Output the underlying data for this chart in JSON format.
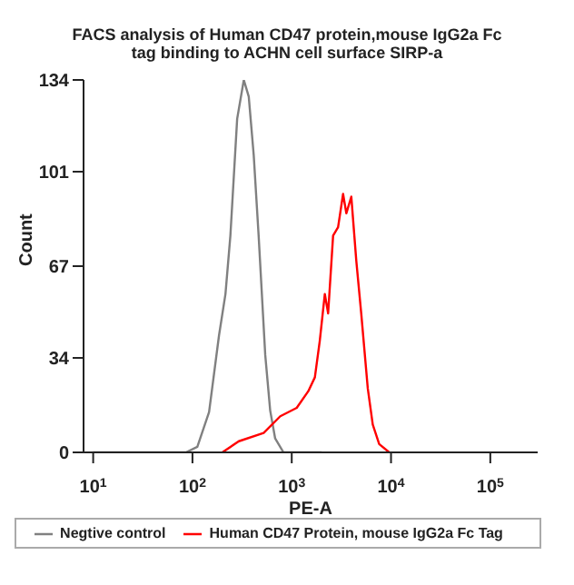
{
  "chart_data": {
    "type": "line",
    "title": "FACS analysis of Human CD47 protein,mouse IgG2a Fc tag binding to ACHN cell surface SIRP-a",
    "xlabel": "PE-A",
    "ylabel": "Count",
    "log": "x",
    "xlim": [
      8,
      300000
    ],
    "xticks": [
      {
        "value": 10,
        "label": "10$^{1}$"
      },
      {
        "value": 100,
        "label": "10$^{2}$"
      },
      {
        "value": 1000,
        "label": "10$^{3}$"
      },
      {
        "value": 10000,
        "label": "10$^{4}$"
      },
      {
        "value": 100000,
        "label": "10$^{5}$"
      }
    ],
    "ylim": [
      0,
      134
    ],
    "yticks": [
      0,
      34,
      67,
      101,
      134
    ],
    "grid": false,
    "legend": "bottom",
    "marker": "none",
    "line_style": "solid",
    "series": [
      {
        "name": "Negtive control",
        "color": "#808080",
        "x": [
          10,
          86,
          112,
          147,
          185,
          215,
          241,
          282,
          329,
          369,
          414,
          464,
          541,
          607,
          681,
          826,
          2000
        ],
        "values": [
          0,
          0,
          2,
          14.5,
          42,
          57,
          78,
          120,
          134,
          128,
          107,
          78,
          35,
          15,
          5,
          0,
          0
        ]
      },
      {
        "name": "Human CD47 Protein, mouse IgG2a Fc Tag",
        "color": "#ff0000",
        "x": [
          200,
          293,
          521,
          766,
          1122,
          1468,
          1710,
          1914,
          2154,
          2326,
          2610,
          2929,
          3290,
          3548,
          3981,
          4467,
          5012,
          5834,
          6548,
          7600,
          9600
        ],
        "values": [
          0,
          4,
          7,
          13,
          16,
          22,
          27,
          40,
          57,
          50,
          78,
          81,
          93,
          86,
          92,
          69,
          50,
          23,
          10,
          3,
          0
        ]
      }
    ]
  }
}
